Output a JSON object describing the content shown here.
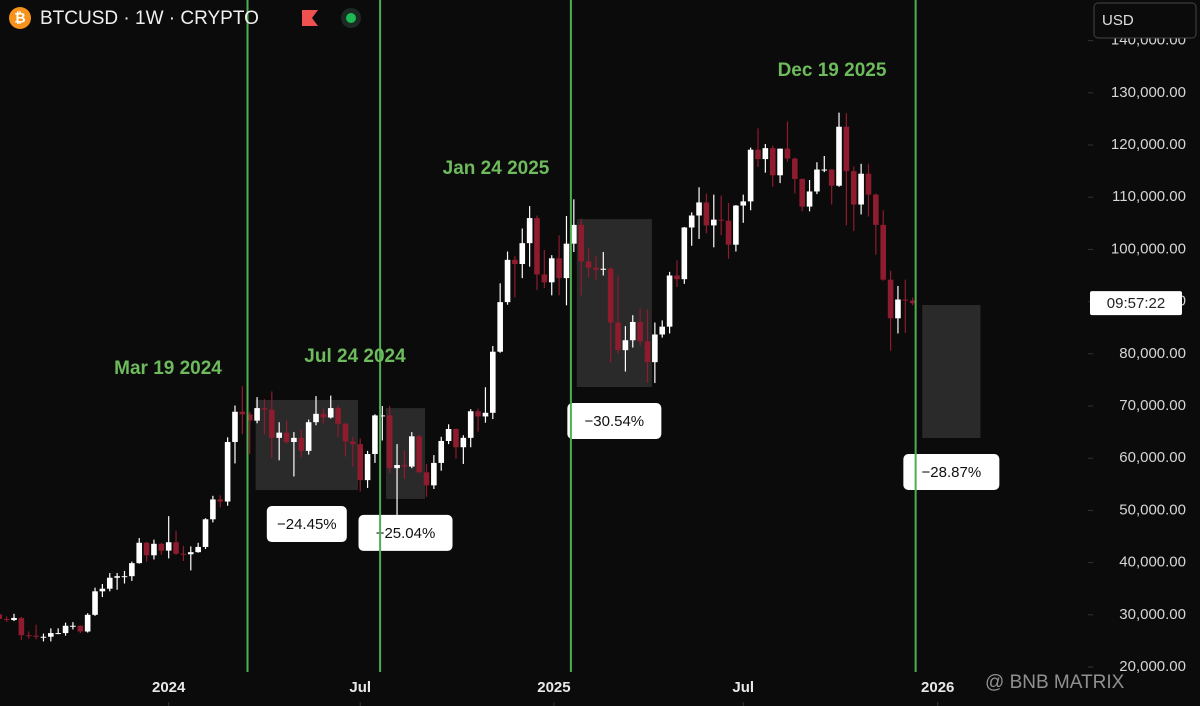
{
  "title": "BTCUSD · 1W · CRYPTO",
  "currency": "USD",
  "countdown": "09:57:22",
  "watermark": "@ BNB MATRIX",
  "chart_data": {
    "type": "candlestick",
    "x": [
      -23,
      -22,
      -21,
      -20,
      -19,
      -18,
      -17,
      -16,
      -15,
      -14,
      -13,
      -12,
      -11,
      -10,
      -9,
      -8,
      -7,
      -6,
      -5,
      -4,
      -3,
      -2,
      -1,
      0,
      1,
      2,
      3,
      4,
      5,
      6,
      7,
      8,
      9,
      10,
      11,
      12,
      13,
      14,
      15,
      16,
      17,
      18,
      19,
      20,
      21,
      22,
      23,
      24,
      25,
      26,
      27,
      28,
      29,
      30,
      31,
      32,
      33,
      34,
      35,
      36,
      37,
      38,
      39,
      40,
      41,
      42,
      43,
      44,
      45,
      46,
      47,
      48,
      49,
      50,
      51,
      52,
      53,
      54,
      55,
      56,
      57,
      58,
      59,
      60,
      61,
      62,
      63,
      64,
      65,
      66,
      67,
      68,
      69,
      70,
      71,
      72,
      73,
      74,
      75,
      76,
      77,
      78,
      79,
      80,
      81,
      82,
      83,
      84,
      85,
      86,
      87,
      88,
      89,
      90,
      91,
      92,
      93,
      94,
      95,
      96,
      97,
      98,
      99,
      100,
      101
    ],
    "ohlc": [
      [
        30100,
        30300,
        28900,
        29200
      ],
      [
        29200,
        29700,
        28600,
        29000
      ],
      [
        29000,
        30200,
        28800,
        29400
      ],
      [
        29400,
        29600,
        25200,
        26100
      ],
      [
        26100,
        26800,
        25400,
        26000
      ],
      [
        26000,
        28100,
        25300,
        25800
      ],
      [
        25800,
        26400,
        24900,
        25800
      ],
      [
        25800,
        27400,
        24900,
        26500
      ],
      [
        26500,
        27400,
        26300,
        26500
      ],
      [
        26500,
        28500,
        26000,
        27900
      ],
      [
        27900,
        28600,
        27200,
        27900
      ],
      [
        27900,
        28000,
        26500,
        26800
      ],
      [
        26800,
        30300,
        26600,
        30000
      ],
      [
        30000,
        35200,
        29800,
        34500
      ],
      [
        34500,
        35900,
        33400,
        35000
      ],
      [
        35000,
        38000,
        34500,
        37100
      ],
      [
        37100,
        38000,
        34800,
        37400
      ],
      [
        37400,
        38400,
        36000,
        37400
      ],
      [
        37400,
        40200,
        36500,
        39900
      ],
      [
        39900,
        44700,
        39800,
        43800
      ],
      [
        43800,
        44000,
        40200,
        41400
      ],
      [
        41400,
        44400,
        40600,
        43600
      ],
      [
        43600,
        43800,
        41500,
        42300
      ],
      [
        42300,
        48900,
        40800,
        43900
      ],
      [
        43900,
        46100,
        41500,
        41700
      ],
      [
        41700,
        43200,
        40300,
        41600
      ],
      [
        41600,
        43100,
        38500,
        42000
      ],
      [
        42000,
        43800,
        41900,
        43000
      ],
      [
        43000,
        48500,
        42600,
        48300
      ],
      [
        48300,
        52800,
        47700,
        52100
      ],
      [
        52100,
        52900,
        50600,
        51700
      ],
      [
        51700,
        64000,
        50900,
        63100
      ],
      [
        63100,
        70100,
        59000,
        68900
      ],
      [
        68900,
        73800,
        64600,
        68400
      ],
      [
        68400,
        68900,
        60800,
        67200
      ],
      [
        67200,
        71700,
        66700,
        69600
      ],
      [
        69600,
        71300,
        64500,
        69300
      ],
      [
        69300,
        72800,
        60000,
        63900
      ],
      [
        63900,
        66900,
        59600,
        64900
      ],
      [
        64900,
        67200,
        62800,
        63100
      ],
      [
        63100,
        65000,
        56500,
        63900
      ],
      [
        63900,
        65500,
        60200,
        61400
      ],
      [
        61400,
        67400,
        60700,
        66900
      ],
      [
        66900,
        71900,
        66300,
        68500
      ],
      [
        68500,
        69500,
        66600,
        67800
      ],
      [
        67800,
        72000,
        67600,
        69600
      ],
      [
        69600,
        70000,
        64100,
        66600
      ],
      [
        66600,
        66800,
        60300,
        63200
      ],
      [
        63200,
        64000,
        58400,
        62700
      ],
      [
        62700,
        63800,
        53600,
        55800
      ],
      [
        55800,
        61400,
        54300,
        60800
      ],
      [
        60800,
        68400,
        59100,
        68200
      ],
      [
        68200,
        70000,
        63400,
        68200
      ],
      [
        68200,
        70000,
        57200,
        58100
      ],
      [
        58100,
        62700,
        49100,
        58700
      ],
      [
        58700,
        61500,
        56100,
        58400
      ],
      [
        58400,
        65000,
        58100,
        64200
      ],
      [
        64200,
        64500,
        57200,
        57300
      ],
      [
        57300,
        58900,
        52600,
        54800
      ],
      [
        54800,
        60600,
        54100,
        59100
      ],
      [
        59100,
        64100,
        57600,
        63300
      ],
      [
        63300,
        66500,
        62700,
        65600
      ],
      [
        65600,
        65700,
        59900,
        62100
      ],
      [
        62100,
        64400,
        58900,
        63900
      ],
      [
        63900,
        69400,
        62100,
        69000
      ],
      [
        69000,
        69500,
        65100,
        68000
      ],
      [
        68000,
        73600,
        66800,
        68700
      ],
      [
        68700,
        81500,
        67500,
        80400
      ],
      [
        80400,
        93500,
        80200,
        89900
      ],
      [
        89900,
        99600,
        89400,
        98000
      ],
      [
        98000,
        98700,
        90800,
        97200
      ],
      [
        97200,
        104000,
        94500,
        101200
      ],
      [
        101200,
        108300,
        96700,
        106000
      ],
      [
        106000,
        106500,
        92200,
        95200
      ],
      [
        95200,
        99900,
        92600,
        93700
      ],
      [
        93700,
        98900,
        91200,
        98300
      ],
      [
        98300,
        102700,
        91200,
        94500
      ],
      [
        94500,
        106400,
        89300,
        101100
      ],
      [
        101100,
        109600,
        99500,
        104700
      ],
      [
        104700,
        105900,
        91200,
        97700
      ],
      [
        97700,
        100200,
        94700,
        96500
      ],
      [
        96500,
        98800,
        94100,
        96100
      ],
      [
        96100,
        99500,
        95000,
        96300
      ],
      [
        96300,
        96600,
        78300,
        86000
      ],
      [
        86000,
        95000,
        80000,
        80700
      ],
      [
        80700,
        85300,
        76600,
        82600
      ],
      [
        82600,
        87400,
        81200,
        86100
      ],
      [
        86100,
        88700,
        81600,
        82400
      ],
      [
        82400,
        88500,
        74500,
        78400
      ],
      [
        78400,
        86000,
        74400,
        83700
      ],
      [
        83700,
        86400,
        83100,
        85200
      ],
      [
        85200,
        95700,
        83900,
        95000
      ],
      [
        95000,
        97900,
        92800,
        94300
      ],
      [
        94300,
        104300,
        93400,
        104200
      ],
      [
        104200,
        107100,
        100700,
        106500
      ],
      [
        106500,
        111900,
        102000,
        109000
      ],
      [
        109000,
        110700,
        103100,
        104600
      ],
      [
        104600,
        110500,
        100400,
        105700
      ],
      [
        105700,
        110300,
        102700,
        105500
      ],
      [
        105500,
        108900,
        98200,
        100900
      ],
      [
        100900,
        108500,
        99600,
        108400
      ],
      [
        108400,
        110500,
        105100,
        109200
      ],
      [
        109200,
        119500,
        107500,
        119100
      ],
      [
        119100,
        123200,
        115800,
        117300
      ],
      [
        117300,
        120200,
        114700,
        119400
      ],
      [
        119400,
        119900,
        112000,
        114200
      ],
      [
        114200,
        119300,
        112700,
        119300
      ],
      [
        119300,
        124500,
        116800,
        117400
      ],
      [
        117400,
        117600,
        110700,
        113500
      ],
      [
        113500,
        113600,
        107300,
        108200
      ],
      [
        108200,
        113300,
        107300,
        111100
      ],
      [
        111100,
        116700,
        110600,
        115300
      ],
      [
        115300,
        117900,
        114800,
        115300
      ],
      [
        115300,
        115400,
        108600,
        112200
      ],
      [
        112200,
        126200,
        112000,
        123500
      ],
      [
        123500,
        126100,
        104600,
        115000
      ],
      [
        115000,
        115900,
        103500,
        108600
      ],
      [
        108600,
        116400,
        106700,
        114500
      ],
      [
        114500,
        116400,
        106300,
        110500
      ],
      [
        110500,
        110700,
        99000,
        104700
      ],
      [
        104700,
        107500,
        94000,
        94200
      ],
      [
        94200,
        95900,
        80600,
        86800
      ],
      [
        86800,
        93000,
        83900,
        90400
      ],
      [
        90400,
        94200,
        84000,
        90200
      ],
      [
        90200,
        90800,
        89300,
        89700
      ]
    ],
    "up_color": "#ffffff",
    "down_color": "#8e1b2e",
    "xlim": [
      -22.9,
      124.8
    ],
    "xticks": [
      {
        "value": 0,
        "label": "2024"
      },
      {
        "value": 26,
        "label": "Jul"
      },
      {
        "value": 52.3,
        "label": "2025"
      },
      {
        "value": 78,
        "label": "Jul"
      },
      {
        "value": 104.4,
        "label": "2026"
      }
    ],
    "ylim": [
      12530,
      147780
    ],
    "yticks": [
      {
        "value": 20000,
        "label": "20,000.00"
      },
      {
        "value": 30000,
        "label": "30,000.00"
      },
      {
        "value": 40000,
        "label": "40,000.00"
      },
      {
        "value": 50000,
        "label": "50,000.00"
      },
      {
        "value": 60000,
        "label": "60,000.00"
      },
      {
        "value": 70000,
        "label": "70,000.00"
      },
      {
        "value": 80000,
        "label": "80,000.00"
      },
      {
        "value": 90000,
        "label": "90,000.00"
      },
      {
        "value": 100000,
        "label": "100,000.00"
      },
      {
        "value": 110000,
        "label": "110,000.00"
      },
      {
        "value": 120000,
        "label": "120,000.00"
      },
      {
        "value": 130000,
        "label": "130,000.00"
      },
      {
        "value": 140000,
        "label": "140,000.00"
      }
    ],
    "events": [
      {
        "label": "Mar 19 2024",
        "x": 10.7
      },
      {
        "label": "Jul 24 2024",
        "x": 28.7
      },
      {
        "label": "Jan 24 2025",
        "x": 54.6
      },
      {
        "label": "Dec 19 2025",
        "x": 101.4
      }
    ],
    "event_color": "#4caf50",
    "ranges": [
      {
        "label": "−24.45%",
        "x": [
          11.8,
          25.7
        ],
        "y": [
          53900,
          71150
        ]
      },
      {
        "label": "−25.04%",
        "x": [
          29.5,
          34.8
        ],
        "y": [
          52200,
          69600
        ]
      },
      {
        "label": "−30.54%",
        "x": [
          55.4,
          65.6
        ],
        "y": [
          73640,
          105800
        ]
      },
      {
        "label": "−28.87%",
        "x": [
          102.3,
          110.2
        ],
        "y": [
          63870,
          89350
        ]
      }
    ]
  }
}
